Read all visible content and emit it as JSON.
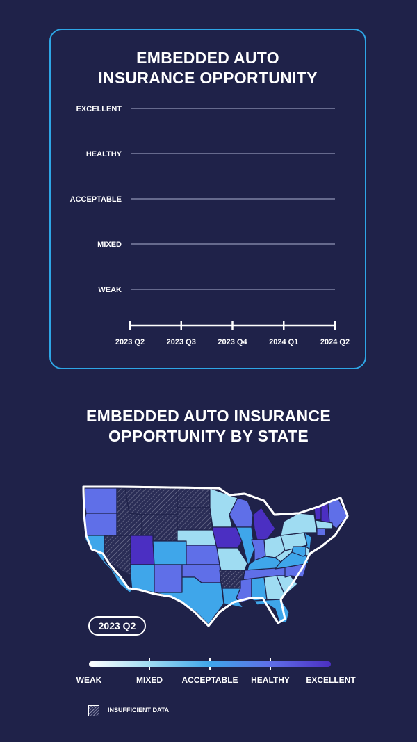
{
  "trend_chart": {
    "title_line1": "EMBEDDED AUTO",
    "title_line2": "INSURANCE OPPORTUNITY"
  },
  "map_section": {
    "title_line1": "EMBEDDED AUTO INSURANCE",
    "title_line2": "OPPORTUNITY BY STATE",
    "period_badge": "2023 Q2",
    "legend_labels": [
      "WEAK",
      "MIXED",
      "ACCEPTABLE",
      "HEALTHY",
      "EXCELLENT"
    ],
    "insufficient_label": "INSUFFICIENT DATA"
  },
  "colors": {
    "background": "#1f2249",
    "card_border": "#2ea6e6",
    "weak": "#ffffff",
    "mixed": "#9fdcf2",
    "acceptable": "#3fa6ea",
    "healthy": "#5f6fe8",
    "excellent": "#4b2fc2"
  },
  "chart_data": [
    {
      "type": "line",
      "title": "EMBEDDED AUTO INSURANCE OPPORTUNITY",
      "categories": [
        "2023 Q2",
        "2023 Q3",
        "2023 Q4",
        "2024 Q1",
        "2024 Q2"
      ],
      "y_levels": [
        "WEAK",
        "MIXED",
        "ACCEPTABLE",
        "HEALTHY",
        "EXCELLENT"
      ],
      "series": [],
      "grid": true
    },
    {
      "type": "heatmap",
      "title": "EMBEDDED AUTO INSURANCE OPPORTUNITY BY STATE",
      "period": "2023 Q2",
      "scale": [
        "WEAK",
        "MIXED",
        "ACCEPTABLE",
        "HEALTHY",
        "EXCELLENT"
      ],
      "states": {
        "WA": "HEALTHY",
        "OR": "HEALTHY",
        "CA": "ACCEPTABLE",
        "NV": "INSUFFICIENT DATA",
        "ID": "INSUFFICIENT DATA",
        "MT": "INSUFFICIENT DATA",
        "WY": "INSUFFICIENT DATA",
        "UT": "EXCELLENT",
        "AZ": "ACCEPTABLE",
        "CO": "ACCEPTABLE",
        "NM": "HEALTHY",
        "ND": "INSUFFICIENT DATA",
        "SD": "INSUFFICIENT DATA",
        "NE": "MIXED",
        "KS": "HEALTHY",
        "OK": "HEALTHY",
        "TX": "ACCEPTABLE",
        "MN": "MIXED",
        "IA": "EXCELLENT",
        "MO": "MIXED",
        "AR": "INSUFFICIENT DATA",
        "LA": "ACCEPTABLE",
        "WI": "HEALTHY",
        "IL": "ACCEPTABLE",
        "MI": "EXCELLENT",
        "IN": "HEALTHY",
        "OH": "MIXED",
        "KY": "ACCEPTABLE",
        "TN": "HEALTHY",
        "MS": "HEALTHY",
        "AL": "ACCEPTABLE",
        "GA": "MIXED",
        "FL": "ACCEPTABLE",
        "SC": "MIXED",
        "NC": "HEALTHY",
        "VA": "ACCEPTABLE",
        "WV": "MIXED",
        "PA": "MIXED",
        "NY": "MIXED",
        "VT": "EXCELLENT",
        "NH": "EXCELLENT",
        "ME": "HEALTHY",
        "MA": "MIXED",
        "CT": "HEALTHY",
        "NJ": "ACCEPTABLE",
        "DE": "MIXED",
        "MD": "ACCEPTABLE"
      }
    }
  ]
}
